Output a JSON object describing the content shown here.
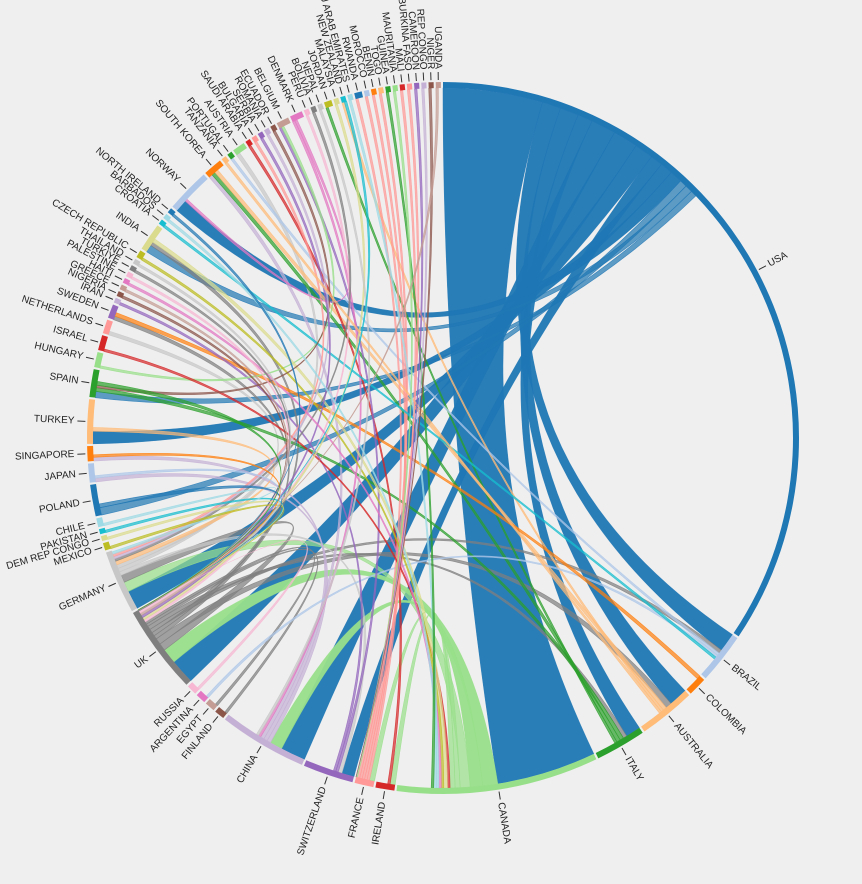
{
  "chart_data": {
    "type": "chord",
    "title": "",
    "note": "Relative group sizes estimated from arc lengths; values are unitless shares.",
    "groups": [
      {
        "name": "USA",
        "value": 60,
        "color": "#1f77b4"
      },
      {
        "name": "BRAZIL",
        "value": 4,
        "color": "#aec7e8"
      },
      {
        "name": "COLOMBIA",
        "value": 1.5,
        "color": "#ff7f0e"
      },
      {
        "name": "AUSTRALIA",
        "value": 4.5,
        "color": "#ffbb78"
      },
      {
        "name": "ITALY",
        "value": 4,
        "color": "#2ca02c"
      },
      {
        "name": "CANADA",
        "value": 16,
        "color": "#98df8a"
      },
      {
        "name": "IRELAND",
        "value": 1.5,
        "color": "#d62728"
      },
      {
        "name": "FRANCE",
        "value": 1.5,
        "color": "#ff9896"
      },
      {
        "name": "SWITZERLAND",
        "value": 4,
        "color": "#9467bd"
      },
      {
        "name": "CHINA",
        "value": 7,
        "color": "#c5b0d5"
      },
      {
        "name": "FINLAND",
        "value": 0.8,
        "color": "#8c564b"
      },
      {
        "name": "EGYPT",
        "value": 0.8,
        "color": "#c49c94"
      },
      {
        "name": "ARGENTINA",
        "value": 0.8,
        "color": "#e377c2"
      },
      {
        "name": "RUSSIA",
        "value": 0.8,
        "color": "#f7b6d2"
      },
      {
        "name": "UK",
        "value": 7,
        "color": "#7f7f7f"
      },
      {
        "name": "GERMANY",
        "value": 5,
        "color": "#c7c7c7"
      },
      {
        "name": "MEXICO",
        "value": 0.6,
        "color": "#bcbd22"
      },
      {
        "name": "DEM REP CONGO",
        "value": 0.4,
        "color": "#dbdb8d"
      },
      {
        "name": "PAKISTAN",
        "value": 0.4,
        "color": "#17becf"
      },
      {
        "name": "CHILE",
        "value": 0.7,
        "color": "#9edae5"
      },
      {
        "name": "POLAND",
        "value": 2.5,
        "color": "#1f77b4"
      },
      {
        "name": "JAPAN",
        "value": 1.5,
        "color": "#aec7e8"
      },
      {
        "name": "SINGAPORE",
        "value": 1.2,
        "color": "#ff7f0e"
      },
      {
        "name": "TURKEY",
        "value": 3.5,
        "color": "#ffbb78"
      },
      {
        "name": "SPAIN",
        "value": 2.2,
        "color": "#2ca02c"
      },
      {
        "name": "HUNGARY",
        "value": 1.2,
        "color": "#98df8a"
      },
      {
        "name": "ISRAEL",
        "value": 1.2,
        "color": "#d62728"
      },
      {
        "name": "NETHERLANDS",
        "value": 1.1,
        "color": "#ff9896"
      },
      {
        "name": "SWEDEN",
        "value": 1.1,
        "color": "#9467bd"
      },
      {
        "name": "IRAN",
        "value": 0.4,
        "color": "#c5b0d5"
      },
      {
        "name": "NIGERIA",
        "value": 0.4,
        "color": "#8c564b"
      },
      {
        "name": "GREECE",
        "value": 0.4,
        "color": "#c49c94"
      },
      {
        "name": "HAITI",
        "value": 0.4,
        "color": "#e377c2"
      },
      {
        "name": "PALESTINE",
        "value": 0.4,
        "color": "#f7b6d2"
      },
      {
        "name": "TURKIYE",
        "value": 0.4,
        "color": "#7f7f7f"
      },
      {
        "name": "THAILAND",
        "value": 0.4,
        "color": "#c7c7c7"
      },
      {
        "name": "CZECH REPUBLIC",
        "value": 0.6,
        "color": "#bcbd22"
      },
      {
        "name": "INDIA",
        "value": 2.2,
        "color": "#dbdb8d"
      },
      {
        "name": "CROATIA",
        "value": 0.4,
        "color": "#17becf"
      },
      {
        "name": "BARBADOS",
        "value": 0.4,
        "color": "#9edae5"
      },
      {
        "name": "NORTH IRELAND",
        "value": 0.4,
        "color": "#1f77b4"
      },
      {
        "name": "NORWAY",
        "value": 3.5,
        "color": "#aec7e8"
      },
      {
        "name": "SOUTH KOREA",
        "value": 1.5,
        "color": "#ff7f0e"
      },
      {
        "name": "TANZANIA",
        "value": 0.4,
        "color": "#ffbb78"
      },
      {
        "name": "PORTUGAL",
        "value": 0.4,
        "color": "#2ca02c"
      },
      {
        "name": "AUSTRIA",
        "value": 1.0,
        "color": "#98df8a"
      },
      {
        "name": "SAUDI ARABIA",
        "value": 0.4,
        "color": "#d62728"
      },
      {
        "name": "BULGARIA",
        "value": 0.4,
        "color": "#ff9896"
      },
      {
        "name": "SERBIA",
        "value": 0.4,
        "color": "#9467bd"
      },
      {
        "name": "ROMANIA",
        "value": 0.4,
        "color": "#c5b0d5"
      },
      {
        "name": "ECUADOR",
        "value": 0.4,
        "color": "#8c564b"
      },
      {
        "name": "BELGIUM",
        "value": 1.0,
        "color": "#c49c94"
      },
      {
        "name": "DENMARK",
        "value": 1.0,
        "color": "#e377c2"
      },
      {
        "name": "PERU",
        "value": 0.4,
        "color": "#f7b6d2"
      },
      {
        "name": "BOLIVIA",
        "value": 0.4,
        "color": "#7f7f7f"
      },
      {
        "name": "NEPAL",
        "value": 0.4,
        "color": "#c7c7c7"
      },
      {
        "name": "JORDAN",
        "value": 0.6,
        "color": "#bcbd22"
      },
      {
        "name": "MALAYSIA",
        "value": 0.4,
        "color": "#dbdb8d"
      },
      {
        "name": "NEW ZEALAND",
        "value": 0.4,
        "color": "#17becf"
      },
      {
        "name": "U ARAB EMIRATES",
        "value": 0.4,
        "color": "#9edae5"
      },
      {
        "name": "RWANDA",
        "value": 0.6,
        "color": "#1f77b4"
      },
      {
        "name": "MOROCCO",
        "value": 0.4,
        "color": "#aec7e8"
      },
      {
        "name": "BENIN",
        "value": 0.4,
        "color": "#ff7f0e"
      },
      {
        "name": "TOGO",
        "value": 0.4,
        "color": "#ffbb78"
      },
      {
        "name": "GUINEA",
        "value": 0.4,
        "color": "#2ca02c"
      },
      {
        "name": "MAURITANIA",
        "value": 0.4,
        "color": "#98df8a"
      },
      {
        "name": "MALI",
        "value": 0.4,
        "color": "#d62728"
      },
      {
        "name": "BURKINA FASO",
        "value": 0.4,
        "color": "#ff9896"
      },
      {
        "name": "CAMEROON",
        "value": 0.4,
        "color": "#9467bd"
      },
      {
        "name": "REP CONGO",
        "value": 0.4,
        "color": "#c5b0d5"
      },
      {
        "name": "NIGER",
        "value": 0.4,
        "color": "#8c564b"
      },
      {
        "name": "UGANDA",
        "value": 0.4,
        "color": "#c49c94"
      }
    ],
    "links": [
      [
        "USA",
        "CANADA",
        8
      ],
      [
        "USA",
        "BRAZIL",
        1.5
      ],
      [
        "USA",
        "AUSTRALIA",
        1.5
      ],
      [
        "USA",
        "ITALY",
        1.2
      ],
      [
        "USA",
        "CHINA",
        2
      ],
      [
        "USA",
        "UK",
        2
      ],
      [
        "USA",
        "GERMANY",
        1.5
      ],
      [
        "USA",
        "SWITZERLAND",
        1
      ],
      [
        "USA",
        "TURKEY",
        1
      ],
      [
        "USA",
        "NORWAY",
        1
      ],
      [
        "USA",
        "POLAND",
        0.6
      ],
      [
        "USA",
        "INDIA",
        0.6
      ],
      [
        "USA",
        "SPAIN",
        0.5
      ],
      [
        "CANADA",
        "UK",
        1.2
      ],
      [
        "CANADA",
        "CHINA",
        1
      ],
      [
        "CANADA",
        "GERMANY",
        0.8
      ],
      [
        "CANADA",
        "FRANCE",
        0.4
      ],
      [
        "CANADA",
        "IRELAND",
        0.4
      ],
      [
        "UK",
        "GERMANY",
        0.6
      ],
      [
        "UK",
        "AUSTRALIA",
        0.5
      ],
      [
        "UK",
        "INDIA",
        0.3
      ],
      [
        "UK",
        "SWEDEN",
        0.3
      ],
      [
        "UK",
        "BRAZIL",
        0.3
      ],
      [
        "UK",
        "ITALY",
        0.3
      ],
      [
        "UK",
        "FINLAND",
        0.2
      ],
      [
        "UK",
        "EGYPT",
        0.2
      ],
      [
        "GERMANY",
        "SWITZERLAND",
        0.3
      ],
      [
        "GERMANY",
        "AUSTRIA",
        0.3
      ],
      [
        "GERMANY",
        "NETHERLANDS",
        0.3
      ],
      [
        "CHINA",
        "JAPAN",
        0.3
      ],
      [
        "CHINA",
        "SINGAPORE",
        0.3
      ],
      [
        "CHINA",
        "SOUTH KOREA",
        0.3
      ],
      [
        "ITALY",
        "SPAIN",
        0.3
      ],
      [
        "ITALY",
        "SOUTH KOREA",
        0.3
      ],
      [
        "ITALY",
        "JORDAN",
        0.2
      ],
      [
        "AUSTRALIA",
        "SOUTH KOREA",
        0.3
      ],
      [
        "AUSTRALIA",
        "NEW ZEALAND",
        0.2
      ],
      [
        "BRAZIL",
        "PORTUGAL",
        0.2
      ],
      [
        "BRAZIL",
        "ARGENTINA",
        0.2
      ],
      [
        "COLOMBIA",
        "SWEDEN",
        0.3
      ],
      [
        "IRELAND",
        "SAUDI ARABIA",
        0.2
      ],
      [
        "SWITZERLAND",
        "BELGIUM",
        0.2
      ],
      [
        "SWITZERLAND",
        "IRAN",
        0.2
      ],
      [
        "FRANCE",
        "MOROCCO",
        0.2
      ],
      [
        "FRANCE",
        "BENIN",
        0.2
      ],
      [
        "FRANCE",
        "MALI",
        0.2
      ],
      [
        "FRANCE",
        "RWANDA",
        0.2
      ],
      [
        "FRANCE",
        "TOGO",
        0.2
      ],
      [
        "HUNGARY",
        "BELGIUM",
        0.2
      ],
      [
        "DENMARK",
        "CHINA",
        0.2
      ],
      [
        "DENMARK",
        "NORWAY",
        0.2
      ],
      [
        "ISRAEL",
        "CANADA",
        0.2
      ],
      [
        "TURKEY",
        "GERMANY",
        0.3
      ],
      [
        "INDIA",
        "CANADA",
        0.3
      ],
      [
        "CZECH REPUBLIC",
        "CANADA",
        0.2
      ],
      [
        "CROATIA",
        "BRAZIL",
        0.2
      ],
      [
        "PERU",
        "UK",
        0.2
      ],
      [
        "MALAYSIA",
        "UK",
        0.2
      ],
      [
        "BOLIVIA",
        "GERMANY",
        0.2
      ],
      [
        "NEPAL",
        "CHINA",
        0.2
      ],
      [
        "ECUADOR",
        "SPAIN",
        0.2
      ],
      [
        "ROMANIA",
        "GERMANY",
        0.2
      ],
      [
        "BULGARIA",
        "GERMANY",
        0.2
      ],
      [
        "SERBIA",
        "UK",
        0.2
      ],
      [
        "TANZANIA",
        "AUSTRALIA",
        0.2
      ],
      [
        "GREECE",
        "UK",
        0.2
      ],
      [
        "HAITI",
        "CANADA",
        0.2
      ],
      [
        "PALESTINE",
        "UK",
        0.2
      ],
      [
        "TURKIYE",
        "UK",
        0.2
      ],
      [
        "THAILAND",
        "UK",
        0.2
      ],
      [
        "NIGERIA",
        "UK",
        0.2
      ],
      [
        "BARBADOS",
        "CANADA",
        0.2
      ],
      [
        "NORTH IRELAND",
        "UK",
        0.2
      ],
      [
        "PAKISTAN",
        "UK",
        0.2
      ],
      [
        "CHILE",
        "GERMANY",
        0.2
      ],
      [
        "MEXICO",
        "UK",
        0.2
      ],
      [
        "DEM REP CONGO",
        "UK",
        0.2
      ],
      [
        "RUSSIA",
        "UK",
        0.2
      ],
      [
        "U ARAB EMIRATES",
        "CANADA",
        0.2
      ],
      [
        "GUINEA",
        "CANADA",
        0.2
      ],
      [
        "MAURITANIA",
        "FRANCE",
        0.2
      ],
      [
        "BURKINA FASO",
        "FRANCE",
        0.2
      ],
      [
        "CAMEROON",
        "FRANCE",
        0.2
      ],
      [
        "REP CONGO",
        "FRANCE",
        0.2
      ],
      [
        "NIGER",
        "FRANCE",
        0.2
      ],
      [
        "UGANDA",
        "UK",
        0.2
      ],
      [
        "NEW ZEALAND",
        "UK",
        0.2
      ],
      [
        "POLAND",
        "UK",
        0.3
      ],
      [
        "JAPAN",
        "UK",
        0.2
      ],
      [
        "SINGAPORE",
        "UK",
        0.2
      ],
      [
        "SPAIN",
        "UK",
        0.3
      ]
    ]
  }
}
